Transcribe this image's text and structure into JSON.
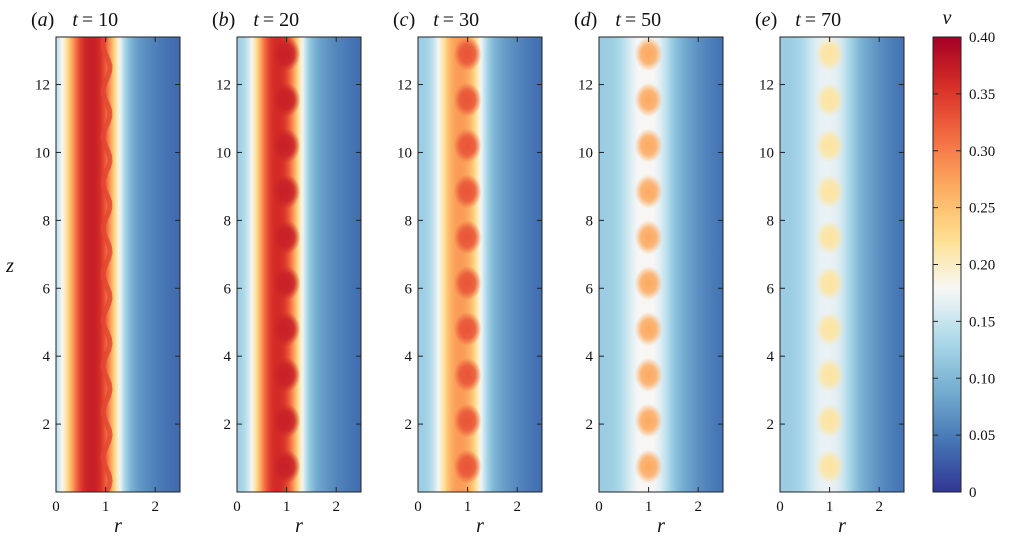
{
  "chart_data": {
    "type": "heatmap",
    "colorbar": {
      "label": "v",
      "range": [
        0,
        0.4
      ],
      "ticks": [
        "0",
        "0.05",
        "0.10",
        "0.15",
        "0.20",
        "0.25",
        "0.30",
        "0.35",
        "0.40"
      ],
      "colormap": "RdYlBu_r",
      "colors": [
        "#313695",
        "#4575b4",
        "#74add1",
        "#abd9e9",
        "#f7f7f7",
        "#fee090",
        "#fdae61",
        "#f46d43",
        "#d73027",
        "#a50026"
      ]
    },
    "shared_axes": {
      "xlabel": "r",
      "ylabel": "z",
      "xlim": [
        0,
        2.5
      ],
      "ylim": [
        0,
        13.4
      ],
      "xticks": [
        "0",
        "1",
        "2"
      ],
      "yticks": [
        "2",
        "4",
        "6",
        "8",
        "10",
        "12"
      ]
    },
    "panels": [
      {
        "tag": "a",
        "t": "10",
        "band_center_r": 0.72,
        "band_width_r": 0.62,
        "peak_v": 0.37,
        "blobs": false,
        "wave_amplitude_r": 0.07
      },
      {
        "tag": "b",
        "t": "20",
        "band_center_r": 0.82,
        "band_width_r": 0.55,
        "peak_v": 0.36,
        "blobs": true,
        "blob_peak_v": 0.37
      },
      {
        "tag": "c",
        "t": "30",
        "band_center_r": 0.85,
        "band_width_r": 0.52,
        "peak_v": 0.28,
        "blobs": true,
        "blob_peak_v": 0.33
      },
      {
        "tag": "d",
        "t": "50",
        "band_center_r": 0.95,
        "band_width_r": 0.55,
        "peak_v": 0.18,
        "blobs": true,
        "blob_peak_v": 0.27
      },
      {
        "tag": "e",
        "t": "70",
        "band_center_r": 0.95,
        "band_width_r": 0.55,
        "peak_v": 0.17,
        "blobs": true,
        "blob_peak_v": 0.215
      }
    ],
    "blob_z": [
      0.75,
      2.1,
      3.45,
      4.8,
      6.15,
      7.5,
      8.85,
      10.2,
      11.55,
      12.9
    ],
    "blob_r": 1.0
  }
}
